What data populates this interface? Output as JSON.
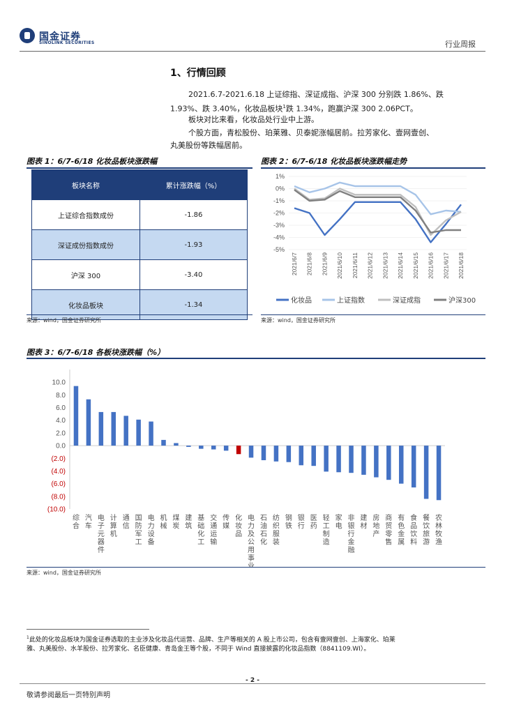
{
  "header": {
    "logo_cn": "国金证券",
    "logo_en": "SINOLINK SECURITIES",
    "right_text": "行业周报"
  },
  "section": {
    "title": "1、行情回顾"
  },
  "paragraphs": {
    "p1_line1": "2021.6.7-2021.6.18 上证综指、深证成指、沪深 300 分别跌 1.86%、跌",
    "p1_line2a": "1.93%、跌 3.40%，化妆品板块",
    "p1_sup": "1",
    "p1_line2b": "跌 1.34%，跑赢沪深 300 2.06PCT。",
    "p2": "板块对比来看，化妆品处行业中上游。",
    "p3_line1": "个股方面，青松股份、珀莱雅、贝泰妮涨幅居前。拉芳家化、壹网壹创、",
    "p3_line2": "丸美股份等跌幅居前。"
  },
  "figure1": {
    "title": "图表 1：6/7-6/18 化妆品板块涨跌幅",
    "headers": [
      "板块名称",
      "累计涨跌幅（%）"
    ],
    "rows": [
      [
        "上证综合指数成份",
        "-1.86"
      ],
      [
        "深证成份指数成份",
        "-1.93"
      ],
      [
        "沪深 300",
        "-3.40"
      ],
      [
        "化妆品板块",
        "-1.34"
      ]
    ],
    "source": "来源：wind，国金证券研究所"
  },
  "figure2": {
    "title": "图表 2：6/7-6/18 化妆品板块涨跌幅走势",
    "source": "来源：wind，国金证券研究所"
  },
  "figure3": {
    "title": "图表 3：6/7-6/18 各板块涨跌幅（%）",
    "source": "来源：wind，国金证券研究所"
  },
  "chart_data": [
    {
      "type": "line",
      "x": [
        "2021/6/7",
        "2021/6/8",
        "2021/6/9",
        "2021/6/10",
        "2021/6/11",
        "2021/6/12",
        "2021/6/13",
        "2021/6/14",
        "2021/6/15",
        "2021/6/16",
        "2021/6/17",
        "2021/6/18"
      ],
      "ylim": [
        -5,
        1
      ],
      "yticks": [
        1,
        0,
        -1,
        -2,
        -3,
        -4,
        -5
      ],
      "ytick_labels": [
        "1%",
        "0%",
        "-1%",
        "-2%",
        "-3%",
        "-4%",
        "-5%"
      ],
      "legend_position": "bottom",
      "series": [
        {
          "name": "化妆品",
          "color": "#4472c4",
          "values": [
            -1.6,
            -2.0,
            -3.8,
            -2.5,
            -1.1,
            -1.1,
            -1.1,
            -1.1,
            -2.5,
            -4.4,
            -2.9,
            -1.3
          ]
        },
        {
          "name": "上证指数",
          "color": "#a7c4e8",
          "values": [
            0.2,
            -0.3,
            0.0,
            0.5,
            0.2,
            0.2,
            0.2,
            0.2,
            -0.5,
            -2.1,
            -1.8,
            -1.9
          ]
        },
        {
          "name": "深证成指",
          "color": "#bfbfbf",
          "values": [
            0.0,
            -0.9,
            -0.8,
            0.0,
            -0.5,
            -0.5,
            -0.5,
            -0.5,
            -1.5,
            -3.8,
            -2.6,
            -1.9
          ]
        },
        {
          "name": "沪深300",
          "color": "#808080",
          "values": [
            -0.1,
            -1.0,
            -0.9,
            -0.2,
            -0.7,
            -0.7,
            -0.7,
            -0.7,
            -1.8,
            -3.6,
            -3.4,
            -3.4
          ]
        }
      ]
    },
    {
      "type": "bar",
      "ylim": [
        -10,
        12
      ],
      "yticks": [
        12,
        10,
        8,
        6,
        4,
        2,
        0,
        -2,
        -4,
        -6,
        -8,
        -10
      ],
      "ytick_labels": [
        "",
        "10.0",
        "8.0",
        "6.0",
        "4.0",
        "2.0",
        "0.0",
        "(2.0)",
        "(4.0)",
        "(6.0)",
        "(8.0)",
        "(10.0)"
      ],
      "bar_color": "#4472c4",
      "highlight_color": "#c00000",
      "highlight_category": "化妆品",
      "categories": [
        "综合",
        "汽车",
        "电子元器件",
        "计算机",
        "通信",
        "国防军工",
        "电力设备",
        "机械",
        "煤炭",
        "建筑",
        "基础化工",
        "交通运输",
        "传媒",
        "化妆品",
        "电力及公用事业",
        "石油石化",
        "纺织服装",
        "钢铁",
        "银行",
        "医药",
        "轻工制造",
        "家电",
        "非银行金融",
        "建材",
        "房地产",
        "商贸零售",
        "有色金属",
        "食品饮料",
        "餐饮旅游",
        "农林牧渔"
      ],
      "values": [
        9.4,
        7.3,
        5.3,
        5.3,
        4.7,
        4.1,
        3.8,
        0.9,
        0.4,
        -0.2,
        -0.5,
        -0.6,
        -0.8,
        -1.34,
        -1.9,
        -2.3,
        -2.5,
        -2.6,
        -3.1,
        -3.2,
        -4.1,
        -4.2,
        -4.3,
        -4.6,
        -5.0,
        -5.4,
        -6.0,
        -6.6,
        -8.4,
        -8.6
      ]
    }
  ],
  "footnote": {
    "marker": "1",
    "line1": "此处的化妆品板块为国金证券选取的主业涉及化妆品代运营、品牌、生产等相关的 A 股上市公司，包含有壹网壹创、上海家化、珀莱",
    "line2": "雅、丸美股份、水羊股份、拉芳家化、名臣健康、青岛金王等个股，不同于 Wind 直接披露的化妆品指数（8841109.WI）。"
  },
  "footer": {
    "page": "- 2 -",
    "disclaimer": "敬请参阅最后一页特别声明"
  }
}
